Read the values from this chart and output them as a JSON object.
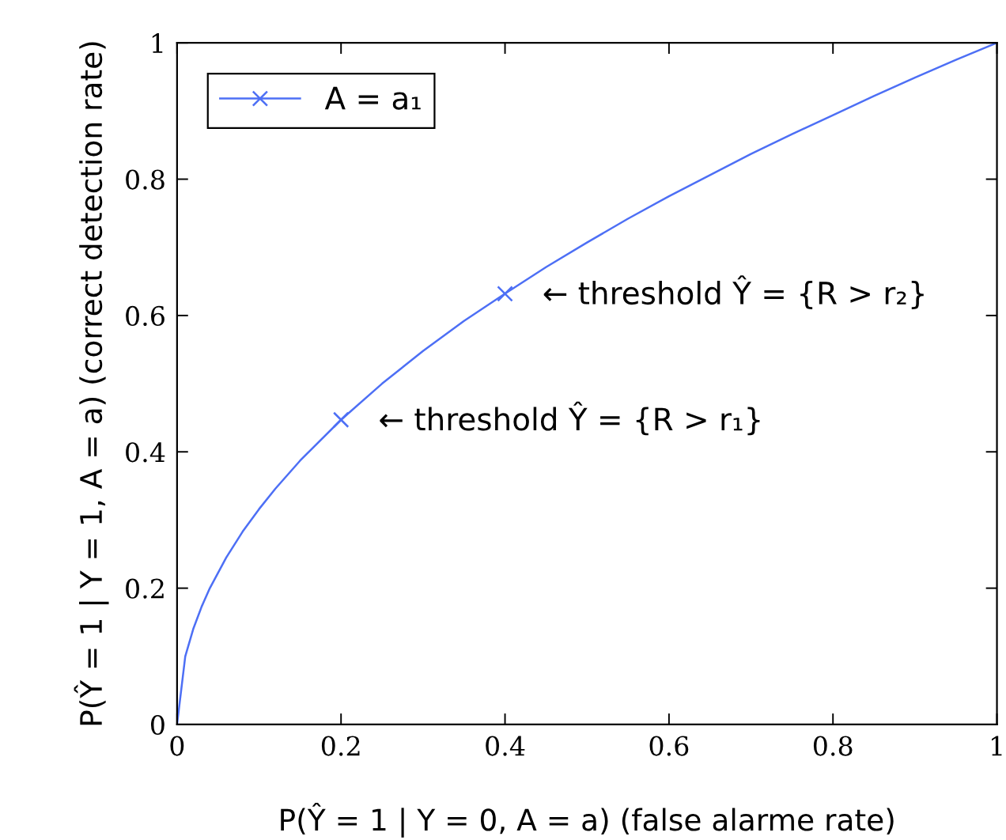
{
  "chart_data": {
    "type": "line",
    "xlabel": "P(Ŷ = 1 | Y = 0, A = a) (false alarme rate)",
    "ylabel": "P(Ŷ = 1 | Y = 1, A = a) (correct detection rate)",
    "xlim": [
      0,
      1
    ],
    "ylim": [
      0,
      1
    ],
    "xticks": [
      0,
      0.2,
      0.4,
      0.6,
      0.8,
      1
    ],
    "yticks": [
      0,
      0.2,
      0.4,
      0.6,
      0.8,
      1
    ],
    "grid": false,
    "legend": "top left",
    "line_style": "solid",
    "series": [
      {
        "name": "A = a₁",
        "color": "#4d6ff5",
        "x": [
          0,
          0.01,
          0.02,
          0.03,
          0.04,
          0.06,
          0.08,
          0.1,
          0.12,
          0.15,
          0.2,
          0.25,
          0.3,
          0.35,
          0.4,
          0.45,
          0.5,
          0.55,
          0.6,
          0.65,
          0.7,
          0.75,
          0.8,
          0.85,
          0.9,
          0.95,
          1
        ],
        "values": [
          0,
          0.1,
          0.141,
          0.173,
          0.2,
          0.245,
          0.283,
          0.316,
          0.346,
          0.387,
          0.447,
          0.5,
          0.548,
          0.592,
          0.632,
          0.671,
          0.707,
          0.742,
          0.775,
          0.806,
          0.837,
          0.866,
          0.894,
          0.922,
          0.949,
          0.975,
          1
        ]
      },
      {
        "color": "#4d6ff5",
        "type": "scatter",
        "marker": "cross",
        "x": [
          0.2,
          0.4
        ],
        "values": [
          0.447,
          0.632
        ]
      }
    ],
    "annotations": [
      {
        "text": "← threshold Ŷ = {R > r₁}",
        "x": 0.2,
        "y": 0.447
      },
      {
        "text": "← threshold Ŷ = {R > r₂}",
        "x": 0.4,
        "y": 0.632
      }
    ]
  }
}
